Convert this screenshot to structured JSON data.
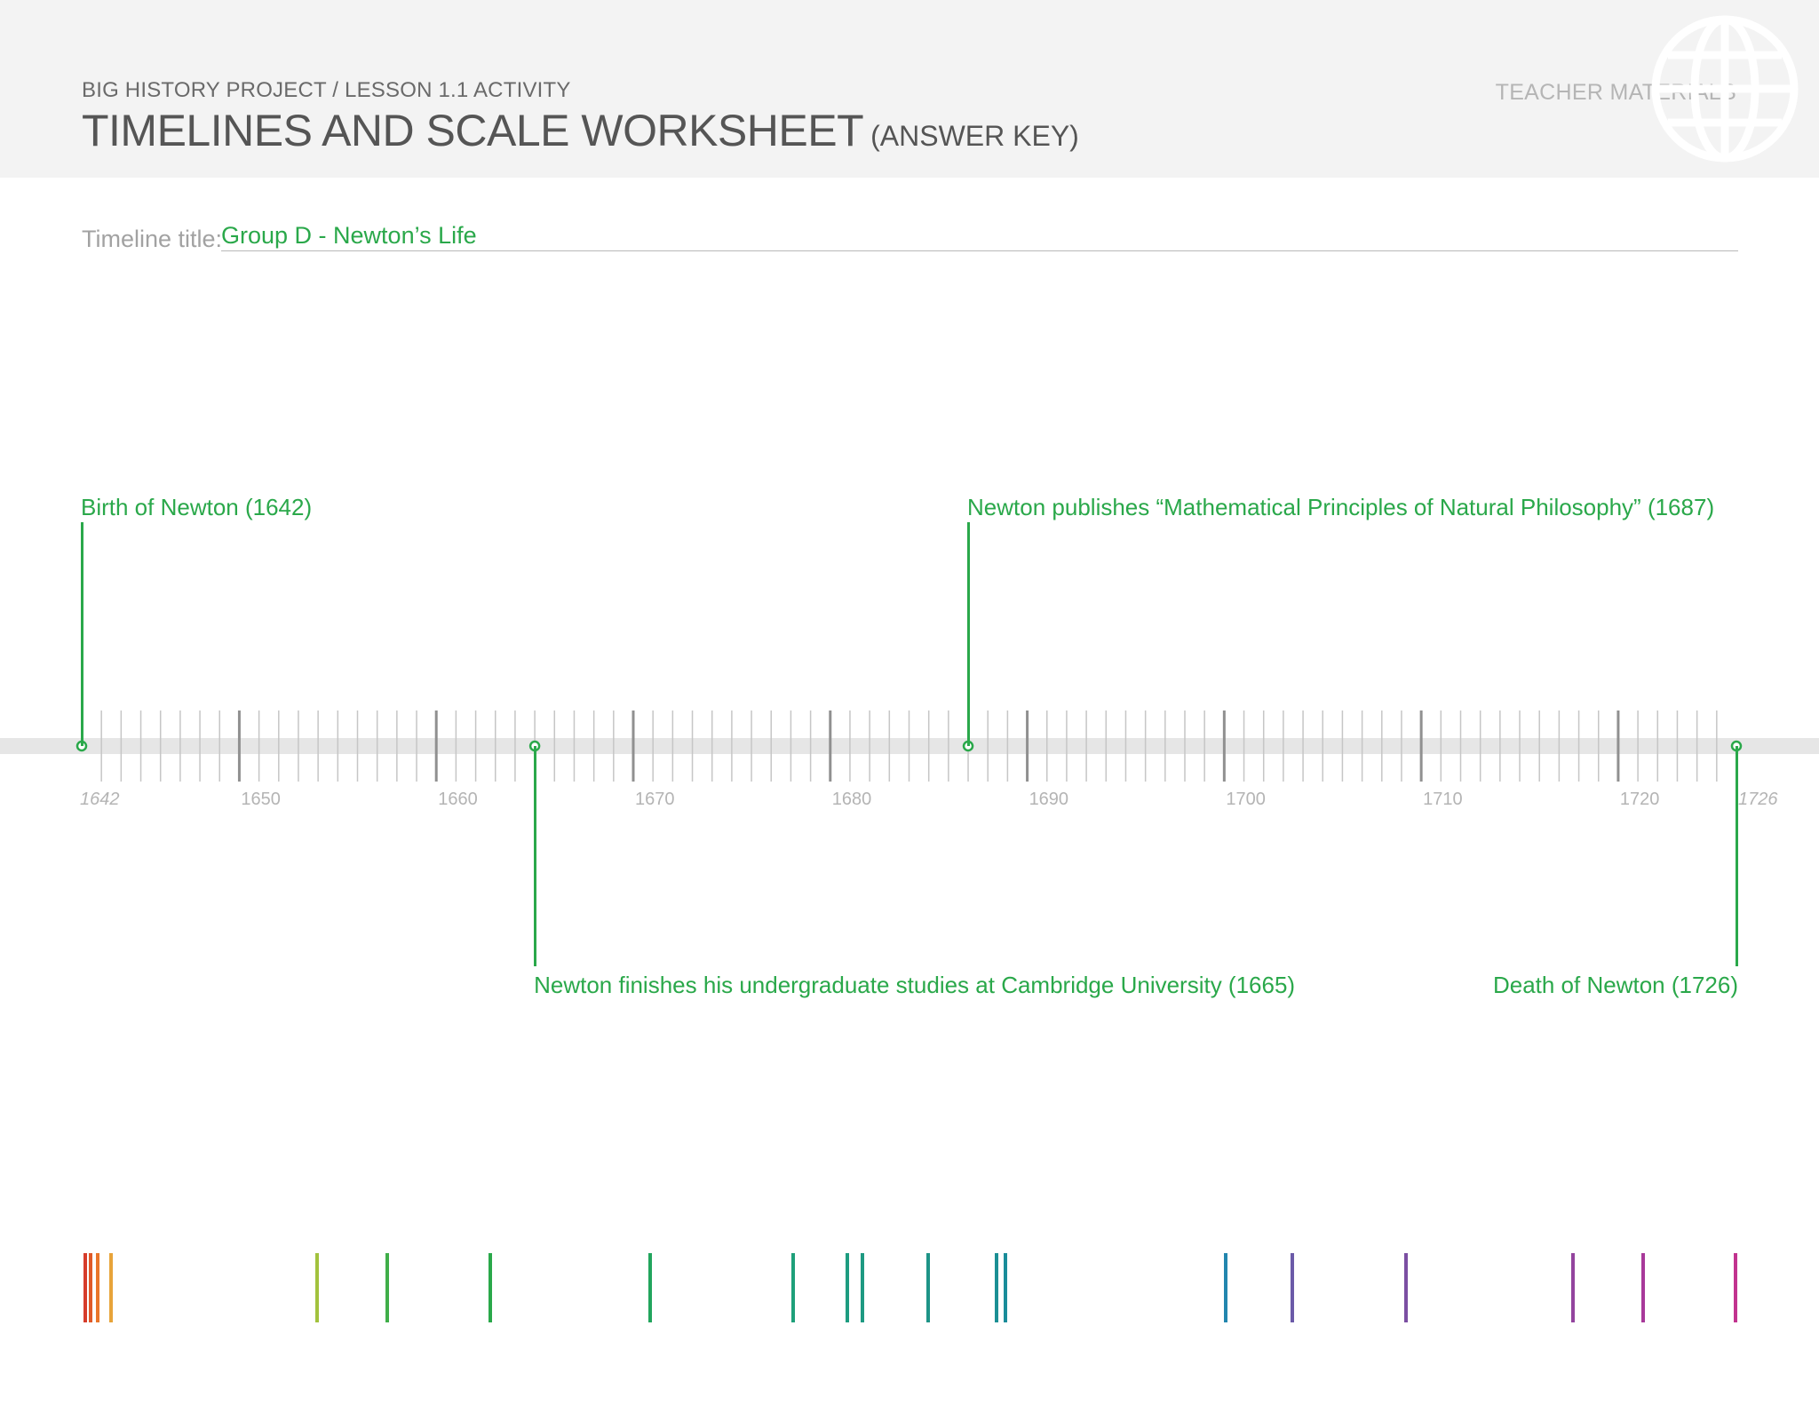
{
  "header": {
    "kicker": "BIG HISTORY PROJECT / LESSON 1.1 ACTIVITY",
    "title": "TIMELINES AND SCALE WORKSHEET",
    "title_suffix": "(ANSWER KEY)",
    "badge": "TEACHER MATERIALS",
    "logo_icon": "globe-icon"
  },
  "timeline_title": {
    "label": "Timeline title:",
    "value": "Group D - Newton’s Life"
  },
  "timeline": {
    "start_year": 1642,
    "end_year": 1726,
    "labels": [
      "1642",
      "1650",
      "1660",
      "1670",
      "1680",
      "1690",
      "1700",
      "1710",
      "1720",
      "1726"
    ],
    "accent": "#2aa84a",
    "events": [
      {
        "year": 1642,
        "label": "Birth of Newton (1642)",
        "side": "above"
      },
      {
        "year": 1687,
        "label": "Newton publishes “Mathematical Principles of Natural Philosophy” (1687)",
        "side": "above"
      },
      {
        "year": 1665,
        "label": "Newton finishes his undergraduate studies at Cambridge University (1665)",
        "side": "below"
      },
      {
        "year": 1726,
        "label": "Death of Newton (1726)",
        "side": "below"
      }
    ]
  },
  "decorative_bars": {
    "colors": [
      "#d63c2b",
      "#e05a28",
      "#e9762a",
      "#e8a43a",
      "#a2c23d",
      "#3fae49",
      "#2aa84a",
      "#22a55d",
      "#1ea07a",
      "#1d9c80",
      "#1e9a82",
      "#1e9487",
      "#1b8f94",
      "#1a8c9a",
      "#2286ae",
      "#6b5aa8",
      "#7b4fa2",
      "#93449e",
      "#a8399a",
      "#c2338f"
    ]
  }
}
